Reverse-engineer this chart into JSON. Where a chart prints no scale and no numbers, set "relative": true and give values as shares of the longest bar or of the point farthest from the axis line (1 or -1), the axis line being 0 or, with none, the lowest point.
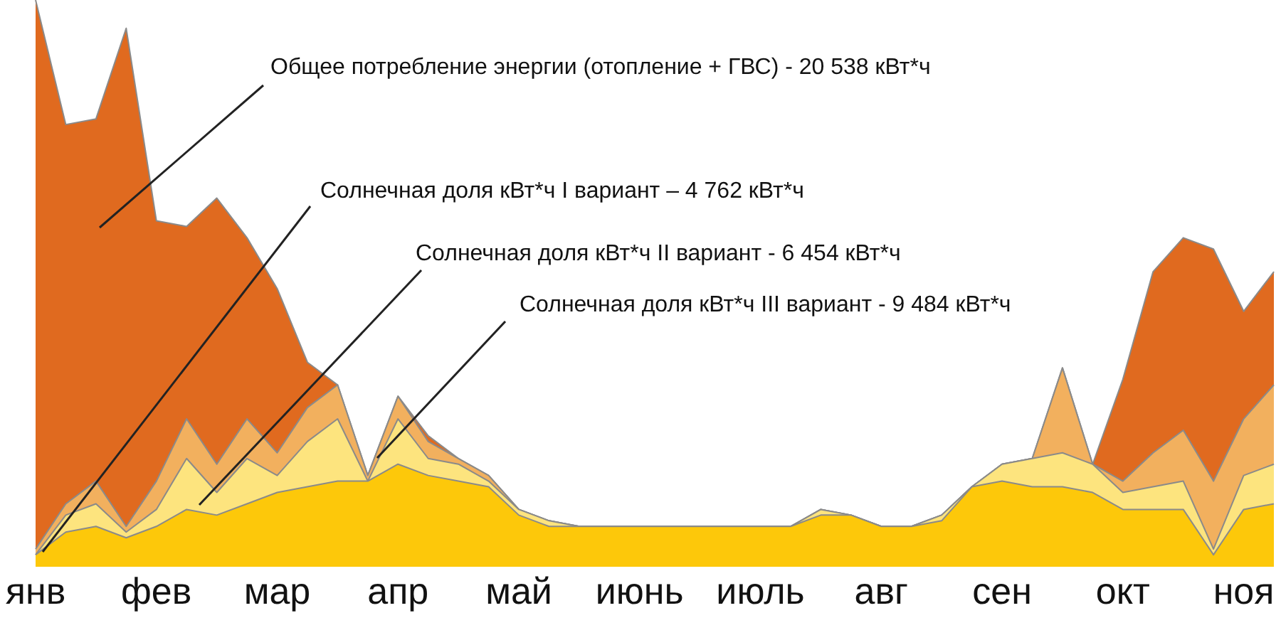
{
  "chart_data": {
    "type": "area",
    "relative": true,
    "legend": false,
    "grid": false,
    "categories": [
      "янв",
      null,
      null,
      null,
      "фев",
      null,
      null,
      null,
      "мар",
      null,
      null,
      null,
      "апр",
      null,
      null,
      null,
      "май",
      null,
      null,
      null,
      "июнь",
      null,
      null,
      null,
      "июль",
      null,
      null,
      null,
      "авг",
      null,
      null,
      null,
      "сен",
      null,
      null,
      null,
      "окт",
      null,
      null,
      null,
      "ноя",
      null
    ],
    "series": [
      {
        "color": "#e06a1f",
        "values": [
          1.0,
          0.78,
          0.79,
          0.95,
          0.61,
          0.6,
          0.65,
          0.58,
          0.49,
          0.36,
          0.32,
          0.16,
          0.3,
          0.23,
          0.19,
          0.16,
          0.1,
          0.08,
          0.07,
          0.07,
          0.07,
          0.07,
          0.07,
          0.07,
          0.07,
          0.07,
          0.1,
          0.09,
          0.07,
          0.07,
          0.09,
          0.14,
          0.18,
          0.19,
          0.35,
          0.18,
          0.33,
          0.52,
          0.58,
          0.56,
          0.45,
          0.52
        ]
      },
      {
        "color": "#f2b05e",
        "values": [
          0.03,
          0.11,
          0.15,
          0.07,
          0.15,
          0.26,
          0.18,
          0.26,
          0.2,
          0.28,
          0.32,
          0.16,
          0.3,
          0.22,
          0.19,
          0.16,
          0.1,
          0.08,
          0.07,
          0.07,
          0.07,
          0.07,
          0.07,
          0.07,
          0.07,
          0.07,
          0.1,
          0.09,
          0.07,
          0.07,
          0.09,
          0.14,
          0.18,
          0.19,
          0.35,
          0.18,
          0.15,
          0.2,
          0.24,
          0.15,
          0.26,
          0.32
        ]
      },
      {
        "color": "#fde47e",
        "values": [
          0.02,
          0.09,
          0.11,
          0.06,
          0.1,
          0.19,
          0.13,
          0.19,
          0.16,
          0.22,
          0.26,
          0.15,
          0.26,
          0.19,
          0.18,
          0.15,
          0.1,
          0.08,
          0.07,
          0.07,
          0.07,
          0.07,
          0.07,
          0.07,
          0.07,
          0.07,
          0.1,
          0.09,
          0.07,
          0.07,
          0.09,
          0.14,
          0.18,
          0.19,
          0.2,
          0.18,
          0.13,
          0.14,
          0.15,
          0.03,
          0.16,
          0.18
        ]
      },
      {
        "color": "#fdc80a",
        "values": [
          0.02,
          0.06,
          0.07,
          0.05,
          0.07,
          0.1,
          0.09,
          0.11,
          0.13,
          0.14,
          0.15,
          0.15,
          0.18,
          0.16,
          0.15,
          0.14,
          0.09,
          0.07,
          0.07,
          0.07,
          0.07,
          0.07,
          0.07,
          0.07,
          0.07,
          0.07,
          0.09,
          0.09,
          0.07,
          0.07,
          0.08,
          0.14,
          0.15,
          0.14,
          0.14,
          0.13,
          0.1,
          0.1,
          0.1,
          0.02,
          0.1,
          0.11
        ]
      }
    ],
    "annotations": [
      "Общее потребление энергии (отопление + ГВС) - 20 538 кВт*ч",
      "Солнечная доля кВт*ч I вариант – 4 762 кВт*ч",
      "Солнечная доля кВт*ч II вариант - 6 454 кВт*ч",
      "Солнечная доля кВт*ч III вариант - 9 484 кВт*ч"
    ]
  }
}
